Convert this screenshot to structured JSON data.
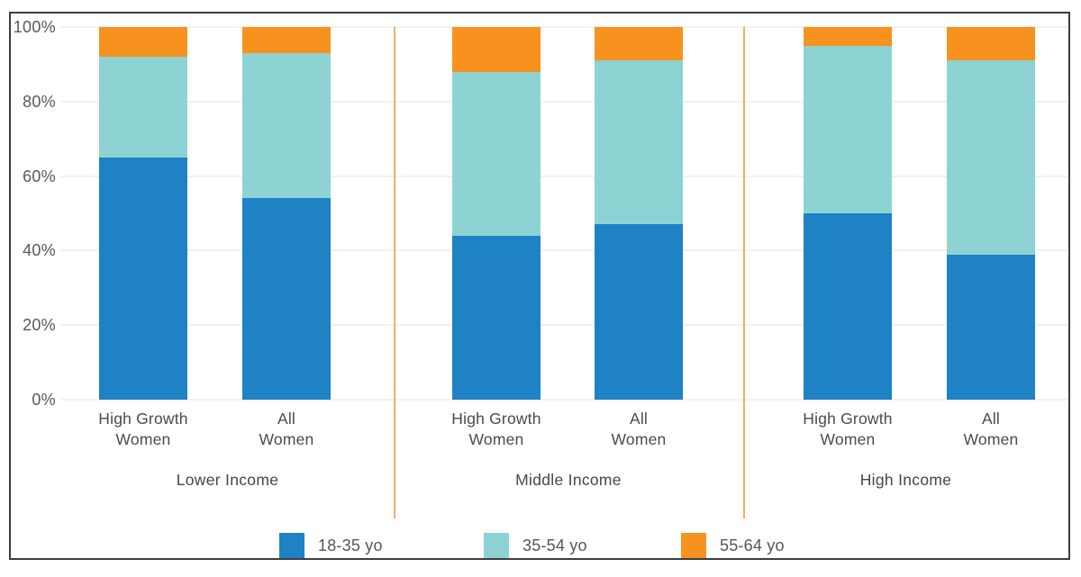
{
  "chart_data": {
    "type": "bar",
    "variant": "100-percent-stacked-column",
    "title": "",
    "xlabel": "",
    "ylabel": "",
    "y_axis": {
      "min": 0,
      "max": 100,
      "grid": true,
      "ticks": [
        {
          "value": 0,
          "label": "0%"
        },
        {
          "value": 20,
          "label": "20%"
        },
        {
          "value": 40,
          "label": "40%"
        },
        {
          "value": 60,
          "label": "60%"
        },
        {
          "value": 80,
          "label": "80%"
        },
        {
          "value": 100,
          "label": "100%"
        }
      ]
    },
    "series_names": [
      "18-35 yo",
      "35-54 yo",
      "55-64 yo"
    ],
    "colors": {
      "18-35 yo": "#1e82c4",
      "35-54 yo": "#8ed3d3",
      "55-64 yo": "#f7921e"
    },
    "separator_color": "#f9ab63",
    "groups": [
      {
        "label": "Lower Income",
        "bars": [
          {
            "label_lines": [
              "High Growth",
              "Women"
            ],
            "values": [
              65,
              27,
              8
            ]
          },
          {
            "label_lines": [
              "All",
              "Women"
            ],
            "values": [
              54,
              39,
              7
            ]
          }
        ]
      },
      {
        "label": "Middle Income",
        "bars": [
          {
            "label_lines": [
              "High Growth",
              "Women"
            ],
            "values": [
              44,
              44,
              12
            ]
          },
          {
            "label_lines": [
              "All",
              "Women"
            ],
            "values": [
              47,
              44,
              9
            ]
          }
        ]
      },
      {
        "label": "High Income",
        "bars": [
          {
            "label_lines": [
              "High Growth",
              "Women"
            ],
            "values": [
              50,
              45,
              5
            ]
          },
          {
            "label_lines": [
              "All",
              "Women"
            ],
            "values": [
              39,
              52,
              9
            ]
          }
        ]
      }
    ],
    "legend": {
      "position": "bottom",
      "items": [
        {
          "label": "18-35 yo",
          "color": "#1e82c4"
        },
        {
          "label": "35-54 yo",
          "color": "#8ed3d3"
        },
        {
          "label": "55-64 yo",
          "color": "#f7921e"
        }
      ]
    }
  }
}
